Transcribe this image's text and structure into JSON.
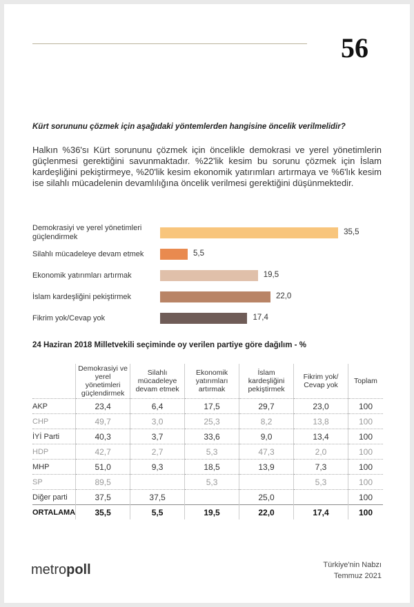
{
  "page_number": "56",
  "question": "Kürt sorununu çözmek için aşağıdaki yöntemlerden hangisine öncelik verilmelidir?",
  "paragraph": "Halkın %36'sı Kürt sorununu çözmek için öncelikle demokrasi ve yerel yönetimlerin güçlenmesi gerektiğini savunmaktadır. %22'lik kesim bu sorunu çözmek için İslam kardeşliğini pekiştirmeye, %20'lik kesim ekonomik yatırımları artırmaya ve %6'lık kesim ise silahlı mücadelenin devamlılığına öncelik verilmesi gerektiğini düşünmektedir.",
  "chart_data": {
    "type": "bar",
    "orientation": "horizontal",
    "categories": [
      "Demokrasiyi ve yerel yönetimleri güçlendirmek",
      "Silahlı mücadeleye devam etmek",
      "Ekonomik yatırımları artırmak",
      "İslam kardeşliğini pekiştirmek",
      "Fikrim yok/Cevap yok"
    ],
    "values": [
      35.5,
      5.5,
      19.5,
      22.0,
      17.4
    ],
    "value_labels": [
      "35,5",
      "5,5",
      "19,5",
      "22,0",
      "17,4"
    ],
    "colors": [
      "#f8c57c",
      "#e98a4f",
      "#e0c0aa",
      "#b98466",
      "#6f5c57"
    ]
  },
  "table": {
    "title": "24 Haziran 2018 Milletvekili seçiminde oy verilen partiye göre dağılım - %",
    "headers": [
      "Demokrasiyi ve yerel yönetimleri güçlendirmek",
      "Silahlı mücadeleye devam etmek",
      "Ekonomik yatırımları artırmak",
      "İslam kardeşliğini pekiştirmek",
      "Fikrim yok/ Cevap yok",
      "Toplam"
    ],
    "rows": [
      [
        "AKP",
        "23,4",
        "6,4",
        "17,5",
        "29,7",
        "23,0",
        "100"
      ],
      [
        "CHP",
        "49,7",
        "3,0",
        "25,3",
        "8,2",
        "13,8",
        "100"
      ],
      [
        "İYİ Parti",
        "40,3",
        "3,7",
        "33,6",
        "9,0",
        "13,4",
        "100"
      ],
      [
        "HDP",
        "42,7",
        "2,7",
        "5,3",
        "47,3",
        "2,0",
        "100"
      ],
      [
        "MHP",
        "51,0",
        "9,3",
        "18,5",
        "13,9",
        "7,3",
        "100"
      ],
      [
        "SP",
        "89,5",
        null,
        "5,3",
        null,
        "5,3",
        "100"
      ],
      [
        "Diğer parti",
        "37,5",
        "37,5",
        null,
        "25,0",
        null,
        "100"
      ],
      [
        "ORTALAMA",
        "35,5",
        "5,5",
        "19,5",
        "22,0",
        "17,4",
        "100"
      ]
    ]
  },
  "footer": {
    "logo": {
      "light": "metro",
      "bold": "poll"
    },
    "publication": "Türkiye'nin Nabzı",
    "date": "Temmuz 2021"
  }
}
